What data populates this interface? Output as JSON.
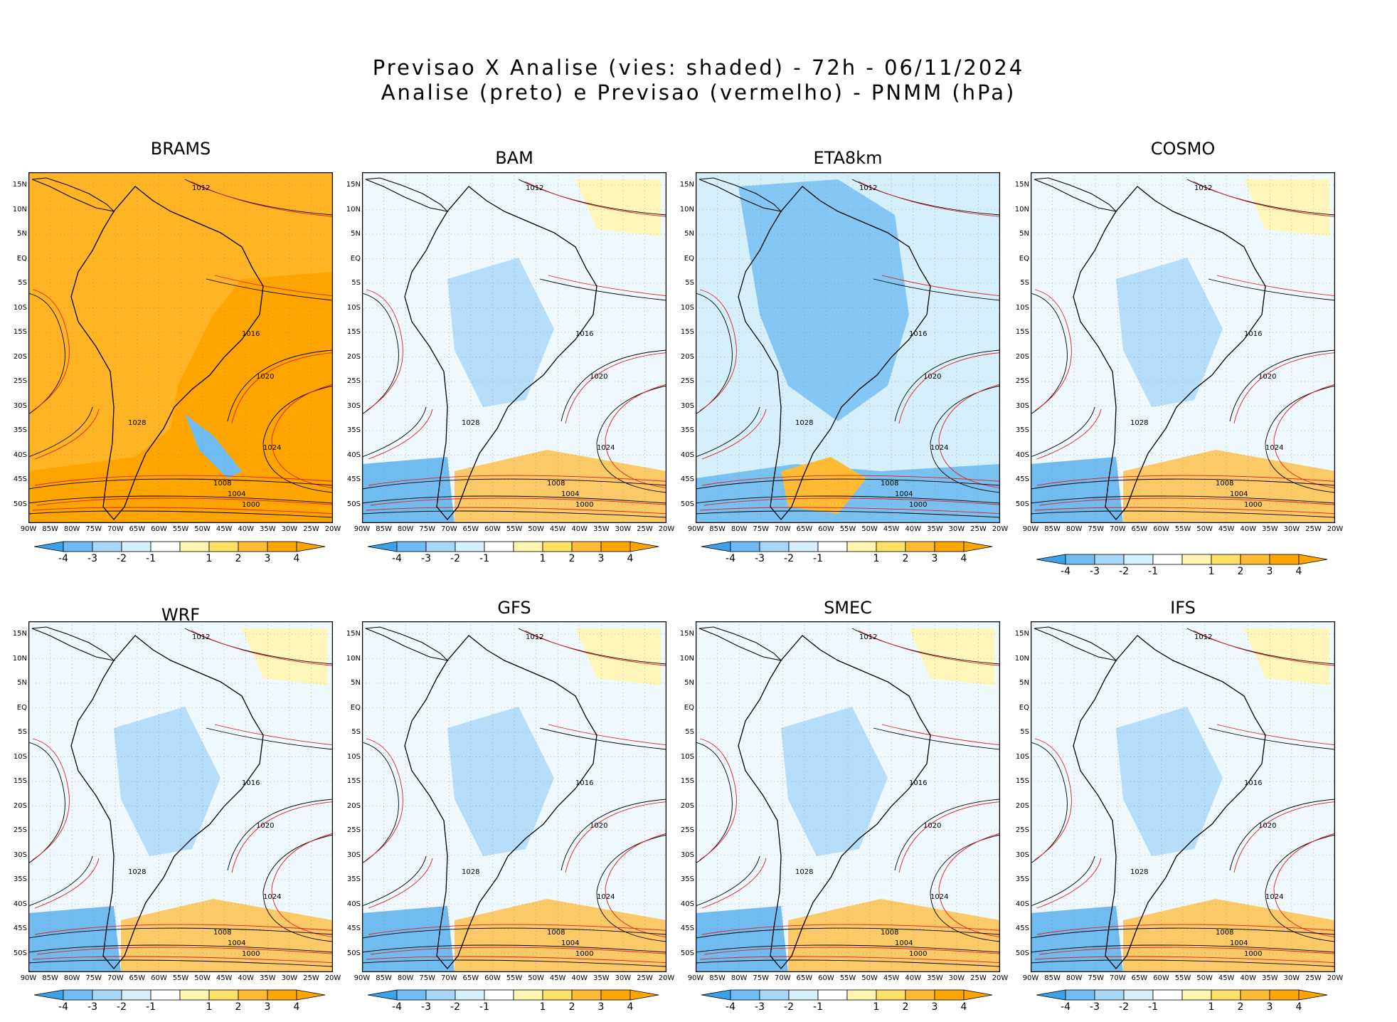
{
  "title_line1": "Previsao X Analise (vies: shaded) - 72h - 06/11/2024",
  "title_line2": "Analise (preto) e Previsao (vermelho) - PNMM (hPa)",
  "panels": [
    {
      "name": "BRAMS",
      "bias": "positive"
    },
    {
      "name": "BAM",
      "bias": "mixed"
    },
    {
      "name": "ETA8km",
      "bias": "negative"
    },
    {
      "name": "COSMO",
      "bias": "mixed"
    },
    {
      "name": "WRF",
      "bias": "mixed"
    },
    {
      "name": "GFS",
      "bias": "mixed"
    },
    {
      "name": "SMEC",
      "bias": "mixed"
    },
    {
      "name": "IFS",
      "bias": "mixed"
    }
  ],
  "lat_labels": [
    "15N",
    "10N",
    "5N",
    "EQ",
    "5S",
    "10S",
    "15S",
    "20S",
    "25S",
    "30S",
    "35S",
    "40S",
    "45S",
    "50S"
  ],
  "lon_labels": [
    "90W",
    "85W",
    "80W",
    "75W",
    "70W",
    "65W",
    "60W",
    "55W",
    "50W",
    "45W",
    "40W",
    "35W",
    "30W",
    "25W",
    "20W"
  ],
  "isobar_labels": [
    "1000",
    "1004",
    "1008",
    "1012",
    "1016",
    "1020",
    "1024",
    "1028"
  ],
  "colorbar": {
    "labels": [
      "-4",
      "-3",
      "-2",
      "-1",
      "1",
      "2",
      "3",
      "4"
    ],
    "colors": [
      "#3ba2ea",
      "#6fbcf2",
      "#a7d6f7",
      "#d6f0fb",
      "#ffffff",
      "#fff4b0",
      "#ffe066",
      "#ffbb33",
      "#ffa500"
    ]
  }
}
